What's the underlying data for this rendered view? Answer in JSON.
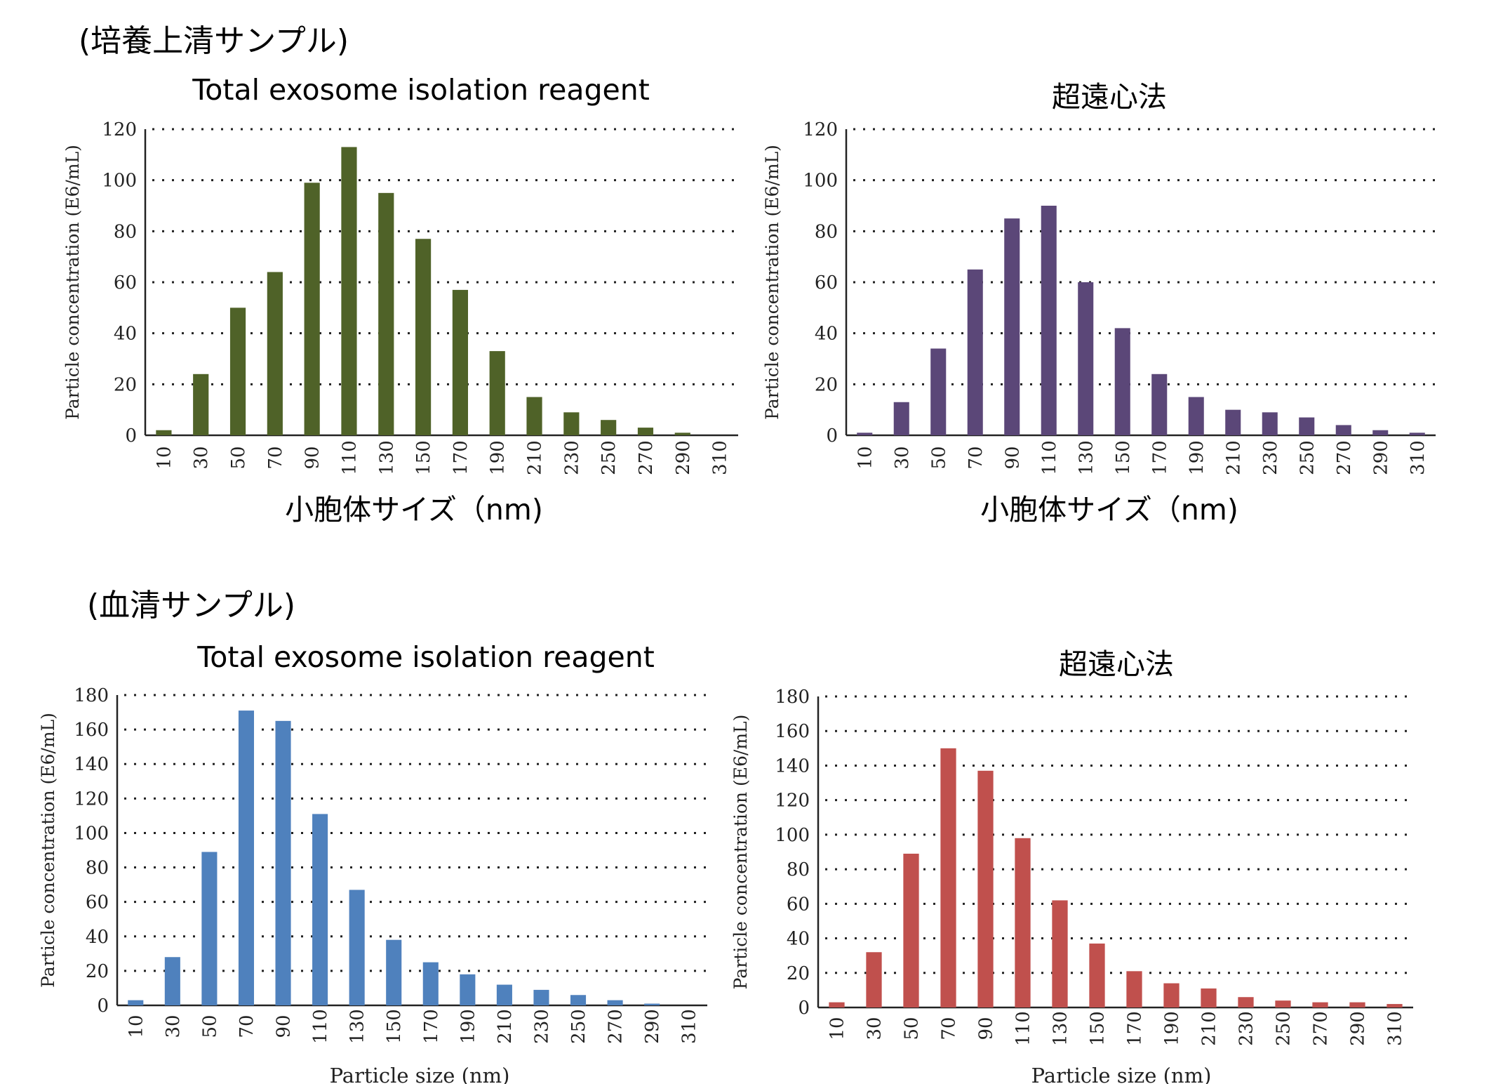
{
  "sections": {
    "culture": "(培養上清サンプル)",
    "serum": "(血清サンプル)"
  },
  "chart_data": [
    {
      "id": "c1",
      "type": "bar",
      "title": "Total exosome isolation reagent",
      "xlabel": "小胞体サイズ（nm)",
      "ylabel": "Particle concentration (E6/mL)",
      "categories": [
        "10",
        "30",
        "50",
        "70",
        "90",
        "110",
        "130",
        "150",
        "170",
        "190",
        "210",
        "230",
        "250",
        "270",
        "290",
        "310"
      ],
      "values": [
        2,
        24,
        50,
        64,
        99,
        113,
        95,
        77,
        57,
        33,
        15,
        9,
        6,
        3,
        1,
        0
      ],
      "ylim": [
        0,
        120
      ],
      "yticks": [
        "0",
        "20",
        "40",
        "60",
        "80",
        "100",
        "120"
      ],
      "color": "#4f6228",
      "grid": true
    },
    {
      "id": "c2",
      "type": "bar",
      "title": "超遠心法",
      "xlabel": "小胞体サイズ（nm)",
      "ylabel": "Particle concentration (E6/mL)",
      "categories": [
        "10",
        "30",
        "50",
        "70",
        "90",
        "110",
        "130",
        "150",
        "170",
        "190",
        "210",
        "230",
        "250",
        "270",
        "290",
        "310"
      ],
      "values": [
        1,
        13,
        34,
        65,
        85,
        90,
        60,
        42,
        24,
        15,
        10,
        9,
        7,
        4,
        2,
        1
      ],
      "ylim": [
        0,
        120
      ],
      "yticks": [
        "0",
        "20",
        "40",
        "60",
        "80",
        "100",
        "120"
      ],
      "color": "#5b4778",
      "grid": true
    },
    {
      "id": "c3",
      "type": "bar",
      "title": "Total exosome isolation reagent",
      "xlabel": "Particle size (nm)",
      "ylabel": "Particle concentration (E6/mL)",
      "categories": [
        "10",
        "30",
        "50",
        "70",
        "90",
        "110",
        "130",
        "150",
        "170",
        "190",
        "210",
        "230",
        "250",
        "270",
        "290",
        "310"
      ],
      "values": [
        3,
        28,
        89,
        171,
        165,
        111,
        67,
        38,
        25,
        18,
        12,
        9,
        6,
        3,
        1,
        0
      ],
      "ylim": [
        0,
        180
      ],
      "yticks": [
        "0",
        "20",
        "40",
        "60",
        "80",
        "100",
        "120",
        "140",
        "160",
        "180"
      ],
      "color": "#4f81bd",
      "grid": true
    },
    {
      "id": "c4",
      "type": "bar",
      "title": "超遠心法",
      "xlabel": "Particle size (nm)",
      "ylabel": "Particle concentration (E6/mL)",
      "categories": [
        "10",
        "30",
        "50",
        "70",
        "90",
        "110",
        "130",
        "150",
        "170",
        "190",
        "210",
        "230",
        "250",
        "270",
        "290",
        "310"
      ],
      "values": [
        3,
        32,
        89,
        150,
        137,
        98,
        62,
        37,
        21,
        14,
        11,
        6,
        4,
        3,
        3,
        2
      ],
      "ylim": [
        0,
        180
      ],
      "yticks": [
        "0",
        "20",
        "40",
        "60",
        "80",
        "100",
        "120",
        "140",
        "160",
        "180"
      ],
      "color": "#c0504d",
      "grid": true
    }
  ]
}
